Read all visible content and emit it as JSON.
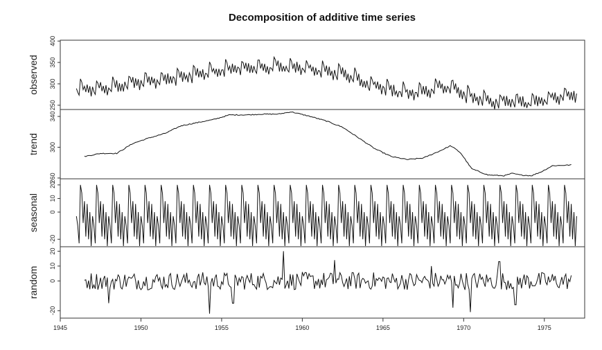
{
  "chart_data": {
    "type": "line",
    "title": "Decomposition of additive time series",
    "xlabel": "",
    "x_ticks": [
      1945,
      1950,
      1955,
      1960,
      1965,
      1970,
      1975
    ],
    "xlim": [
      1945.0,
      1977.5
    ],
    "frequency": 12,
    "panels": [
      {
        "name": "observed",
        "ylabel": "observed",
        "ylim": [
          240,
          402
        ],
        "y_ticks": [
          250,
          300,
          350,
          400
        ],
        "anchors": [
          [
            1946.0,
            290
          ],
          [
            1948.0,
            295
          ],
          [
            1950.0,
            310
          ],
          [
            1952.0,
            318
          ],
          [
            1954.0,
            330
          ],
          [
            1955.5,
            340
          ],
          [
            1957.0,
            342
          ],
          [
            1958.5,
            345
          ],
          [
            1959.5,
            345
          ],
          [
            1961.0,
            336
          ],
          [
            1962.5,
            330
          ],
          [
            1964.0,
            305
          ],
          [
            1965.5,
            290
          ],
          [
            1966.5,
            283
          ],
          [
            1967.5,
            285
          ],
          [
            1968.5,
            300
          ],
          [
            1969.5,
            293
          ],
          [
            1970.3,
            275
          ],
          [
            1971.5,
            265
          ],
          [
            1972.5,
            262
          ],
          [
            1973.5,
            262
          ],
          [
            1974.5,
            262
          ],
          [
            1975.5,
            272
          ],
          [
            1976.5,
            280
          ],
          [
            1977.0,
            280
          ]
        ],
        "seasonal_amplitude": 20,
        "start": 1946.0,
        "end": 1977.0
      },
      {
        "name": "trend",
        "ylabel": "trend",
        "ylim": [
          259,
          349
        ],
        "y_ticks": [
          260,
          300,
          340
        ],
        "anchors": [
          [
            1946.5,
            288
          ],
          [
            1947.5,
            292
          ],
          [
            1948.5,
            292
          ],
          [
            1949.5,
            305
          ],
          [
            1950.5,
            312
          ],
          [
            1951.5,
            318
          ],
          [
            1952.5,
            328
          ],
          [
            1953.5,
            332
          ],
          [
            1954.5,
            336
          ],
          [
            1955.5,
            342
          ],
          [
            1956.5,
            342
          ],
          [
            1957.5,
            343
          ],
          [
            1958.5,
            343
          ],
          [
            1959.3,
            346
          ],
          [
            1960.5,
            340
          ],
          [
            1961.5,
            334
          ],
          [
            1962.5,
            326
          ],
          [
            1963.5,
            312
          ],
          [
            1964.5,
            298
          ],
          [
            1965.5,
            288
          ],
          [
            1966.5,
            284
          ],
          [
            1967.5,
            286
          ],
          [
            1968.5,
            295
          ],
          [
            1969.2,
            302
          ],
          [
            1969.8,
            293
          ],
          [
            1970.5,
            272
          ],
          [
            1971.5,
            264
          ],
          [
            1972.5,
            263
          ],
          [
            1973.0,
            266
          ],
          [
            1973.5,
            264
          ],
          [
            1974.2,
            263
          ],
          [
            1974.8,
            268
          ],
          [
            1975.5,
            276
          ],
          [
            1976.7,
            277
          ]
        ],
        "start": 1946.5,
        "end": 1976.7
      },
      {
        "name": "seasonal",
        "ylabel": "seasonal",
        "ylim": [
          -25.5,
          24.5
        ],
        "y_ticks": [
          -20,
          0,
          10,
          20
        ],
        "monthly_pattern": [
          -3,
          -10,
          -23,
          20,
          14,
          -8,
          8,
          -18,
          6,
          -20,
          0,
          -25
        ],
        "start": 1946.0,
        "end": 1977.0
      },
      {
        "name": "random",
        "ylabel": "random",
        "ylim": [
          -25,
          23
        ],
        "y_ticks": [
          -20,
          0,
          10,
          20
        ],
        "amplitude": 6,
        "spikes": [
          [
            1948.0,
            -15
          ],
          [
            1954.25,
            -22
          ],
          [
            1955.7,
            -15
          ],
          [
            1958.8,
            20
          ],
          [
            1962.0,
            14
          ],
          [
            1968.0,
            10
          ],
          [
            1969.3,
            -18
          ],
          [
            1970.4,
            -21
          ],
          [
            1972.2,
            13
          ],
          [
            1973.2,
            -16
          ]
        ],
        "start": 1946.5,
        "end": 1976.7
      }
    ]
  }
}
